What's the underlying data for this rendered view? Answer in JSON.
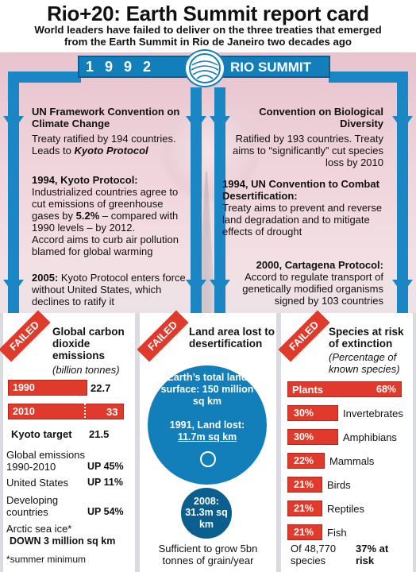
{
  "header": {
    "title": "Rio+20: Earth Summit report card",
    "subtitle_line1": "World leaders have failed to deliver on the three treaties that emerged",
    "subtitle_line2": "from the Earth Summit in Rio de Janeiro two decades ago"
  },
  "banner": {
    "year": "1992",
    "label": "RIO SUMMIT"
  },
  "left_column": {
    "item1_title": "UN Framework Convention on Climate Change",
    "item1_body1": "Treaty ratified by 194 countries.",
    "item1_body2_prefix": "Leads to ",
    "item1_body2_em": "Kyoto Protocol",
    "item2_title": "1994, Kyoto Protocol:",
    "item2_body1": "Industrialized countries agree to cut emissions of greenhouse",
    "item2_body2_prefix": "gases by ",
    "item2_body2_em": "5.2%",
    "item2_body2_suffix": " – compared with 1990 levels – by 2012.",
    "item2_body3": "Accord aims to curb air pollution blamed for global warming",
    "item3_title": "2005:",
    "item3_body": "Kyoto Protocol enters force without United States, which declines to ratify it"
  },
  "right_column": {
    "item1_title": "Convention on Biological Diversity",
    "item1_body": "Ratified by 193 countries. Treaty aims to “significantly” cut species loss by 2010",
    "item2_title": "1994, UN Convention to Combat Desertification:",
    "item2_body": "Treaty aims to prevent and reverse land degradation and to mitigate effects of drought",
    "item3_title": "2000, Cartagena Protocol:",
    "item3_body": "Accord to regulate transport of genetically modified organisms signed by 103 countries"
  },
  "failed_label": "FAILED",
  "carbon_panel": {
    "title": "Global carbon dioxide emissions",
    "unit": "(billion tonnes)",
    "kyoto_label": "Kyoto target",
    "kyoto_value": "21.5",
    "stats_heading": "Global emissions 1990-2010",
    "stats_heading_value": "UP 45%",
    "us_label": "United States",
    "us_value": "UP 11%",
    "dev_label": "Developing countries",
    "dev_value": "UP 54%",
    "arctic_label": "Arctic sea ice*",
    "arctic_value": "DOWN 3 million sq km",
    "footnote": "*summer minimum"
  },
  "land_panel": {
    "title": "Land area lost to desertification",
    "total_label": "Earth’s total land surface: 150 million sq km",
    "lost1991_label": "1991, Land lost:",
    "lost1991_value": "11.7m sq km",
    "lost2008_label": "2008:",
    "lost2008_value": "31.3m sq km",
    "caption": "Sufficient to grow 5bn tonnes of grain/year"
  },
  "species_panel": {
    "title": "Species at risk of extinction",
    "subtitle": "(Percentage of known species)",
    "footer_left": "Of 48,770 species",
    "footer_right": "37% at risk"
  },
  "chart_data": [
    {
      "type": "bar",
      "title": "Global carbon dioxide emissions",
      "ylabel": "(billion tonnes)",
      "categories": [
        "1990",
        "2010"
      ],
      "values": [
        22.7,
        33
      ],
      "value_labels": [
        "22.7",
        "33"
      ],
      "reference": {
        "label": "Kyoto target",
        "value": 21.5
      },
      "xlim": [
        0,
        33
      ]
    },
    {
      "type": "bar",
      "title": "Species at risk of extinction",
      "ylabel": "(Percentage of known species)",
      "categories": [
        "Plants",
        "Invertebrates",
        "Amphibians",
        "Mammals",
        "Birds",
        "Reptiles",
        "Fish"
      ],
      "values": [
        68,
        30,
        30,
        22,
        21,
        21,
        21
      ],
      "value_labels": [
        "68%",
        "30%",
        "30%",
        "22%",
        "21%",
        "21%",
        "21%"
      ],
      "xlim": [
        0,
        68
      ]
    }
  ],
  "colors": {
    "accent_blue": "#137fba",
    "failed_red": "#e03a2c"
  }
}
